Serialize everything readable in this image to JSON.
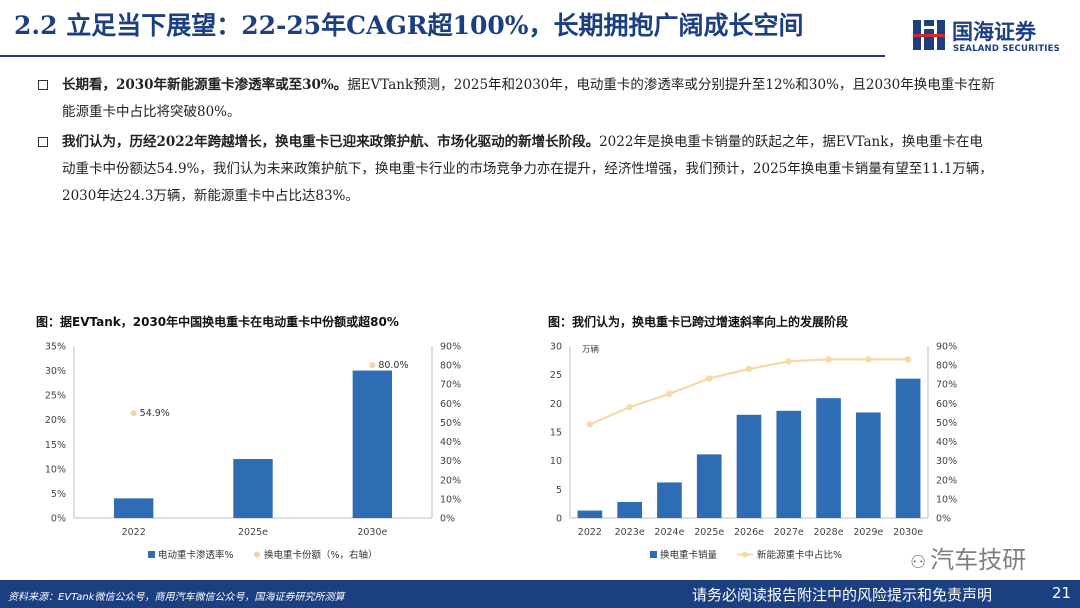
{
  "header": {
    "title": "2.2 立足当下展望：22-25年CAGR超100%，长期拥抱广阔成长空间",
    "logo_cn": "国海证券",
    "logo_en": "SEALAND SECURITIES"
  },
  "bullets": [
    {
      "bold": "长期看，2030年新能源重卡渗透率或至30%。",
      "text": "据EVTank预测，2025年和2030年，电动重卡的渗透率或分别提升至12%和30%，且2030年换电重卡在新能源重卡中占比将突破80%。"
    },
    {
      "bold": "我们认为，历经2022年跨越增长，换电重卡已迎来政策护航、市场化驱动的新增长阶段。",
      "text": "2022年是换电重卡销量的跃起之年，据EVTank，换电重卡在电动重卡中份额达54.9%，我们认为未来政策护航下，换电重卡行业的市场竞争力亦在提升，经济性增强，我们预计，2025年换电重卡销量有望至11.1万辆，2030年达24.3万辆，新能源重卡中占比达83%。"
    }
  ],
  "colors": {
    "brand": "#1c3f82",
    "bar": "#2e6db4",
    "line": "#f6d9a6",
    "dot": "#f5d3a0"
  },
  "chart_data": [
    {
      "type": "bar",
      "title": "图：据EVTank，2030年中国换电重卡在电动重卡中份额或超80%",
      "categories": [
        "2022",
        "2025e",
        "2030e"
      ],
      "series": [
        {
          "name": "电动重卡渗透率%",
          "type": "bar",
          "axis": "left",
          "values": [
            4,
            12,
            30
          ]
        },
        {
          "name": "换电重卡份额（%，右轴）",
          "type": "scatter",
          "axis": "right",
          "values": [
            54.9,
            null,
            80.0
          ],
          "labels": [
            "54.9%",
            "",
            "80.0%"
          ]
        }
      ],
      "y_left": {
        "min": 0,
        "max": 35,
        "step": 5,
        "format": "percent",
        "ticks": [
          "0%",
          "5%",
          "10%",
          "15%",
          "20%",
          "25%",
          "30%",
          "35%"
        ]
      },
      "y_right": {
        "min": 0,
        "max": 90,
        "step": 10,
        "format": "percent",
        "ticks": [
          "0%",
          "10%",
          "20%",
          "30%",
          "40%",
          "50%",
          "60%",
          "70%",
          "80%",
          "90%"
        ]
      },
      "legend": "bottom",
      "grid": false
    },
    {
      "type": "bar",
      "title": "图：我们认为，换电重卡已跨过增速斜率向上的发展阶段",
      "unit": "万辆",
      "categories": [
        "2022",
        "2023e",
        "2024e",
        "2025e",
        "2026e",
        "2027e",
        "2028e",
        "2029e",
        "2030e"
      ],
      "series": [
        {
          "name": "换电重卡销量",
          "type": "bar",
          "axis": "left",
          "values": [
            1.3,
            2.8,
            6.2,
            11.1,
            18.0,
            18.7,
            20.9,
            18.4,
            24.3
          ]
        },
        {
          "name": "新能源重卡中占比%",
          "type": "line",
          "axis": "right",
          "values": [
            49,
            58,
            65,
            73,
            78,
            82,
            83,
            83,
            83
          ]
        }
      ],
      "y_left": {
        "min": 0,
        "max": 30,
        "step": 5,
        "ticks": [
          "0",
          "5",
          "10",
          "15",
          "20",
          "25",
          "30"
        ]
      },
      "y_right": {
        "min": 0,
        "max": 90,
        "step": 10,
        "format": "percent",
        "ticks": [
          "0%",
          "10%",
          "20%",
          "30%",
          "40%",
          "50%",
          "60%",
          "70%",
          "80%",
          "90%"
        ]
      },
      "legend": "bottom",
      "grid": false
    }
  ],
  "footer": {
    "source": "资料来源：EVTank微信公众号，商用汽车微信公众号，国海证券研究所测算",
    "disclaimer": "请务必阅读报告附注中的风险提示和免责声明",
    "page": "21"
  },
  "watermark": {
    "text": "汽车技研"
  }
}
